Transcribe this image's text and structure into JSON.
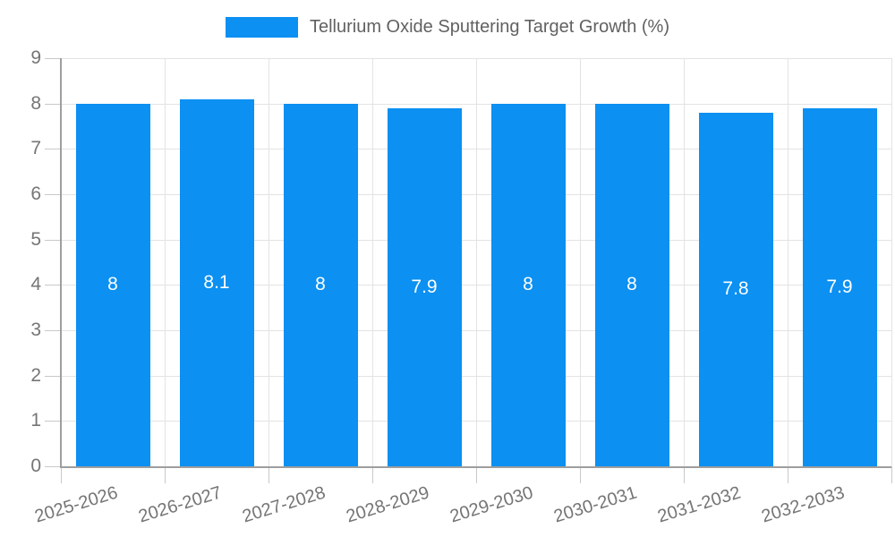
{
  "chart_data": {
    "type": "bar",
    "title": "Tellurium Oxide Sputtering Target Growth (%)",
    "categories": [
      "2025-2026",
      "2026-2027",
      "2027-2028",
      "2028-2029",
      "2029-2030",
      "2030-2031",
      "2031-2032",
      "2032-2033"
    ],
    "values": [
      8,
      8.1,
      8,
      7.9,
      8,
      8,
      7.8,
      7.9
    ],
    "value_labels": [
      "8",
      "8.1",
      "8",
      "7.9",
      "8",
      "8",
      "7.8",
      "7.9"
    ],
    "xlabel": "",
    "ylabel": "",
    "ylim": [
      0,
      9
    ],
    "yticks": [
      0,
      1,
      2,
      3,
      4,
      5,
      6,
      7,
      8,
      9
    ],
    "ytick_labels": [
      "0",
      "1",
      "2",
      "3",
      "4",
      "5",
      "6",
      "7",
      "8",
      "9"
    ],
    "grid": "horizontal lines at integers, vertical lines at category boundaries",
    "legend_position": "top-center",
    "x_label_rotation_deg": -17,
    "colors": {
      "bar": "#0C90F2",
      "value_label": "#ffffff",
      "axis": "#9e9e9e",
      "gridline": "#e3e3e3",
      "tick": "#c9c9c9",
      "tick_label": "#757575",
      "title": "#616161",
      "background": "#ffffff"
    }
  }
}
